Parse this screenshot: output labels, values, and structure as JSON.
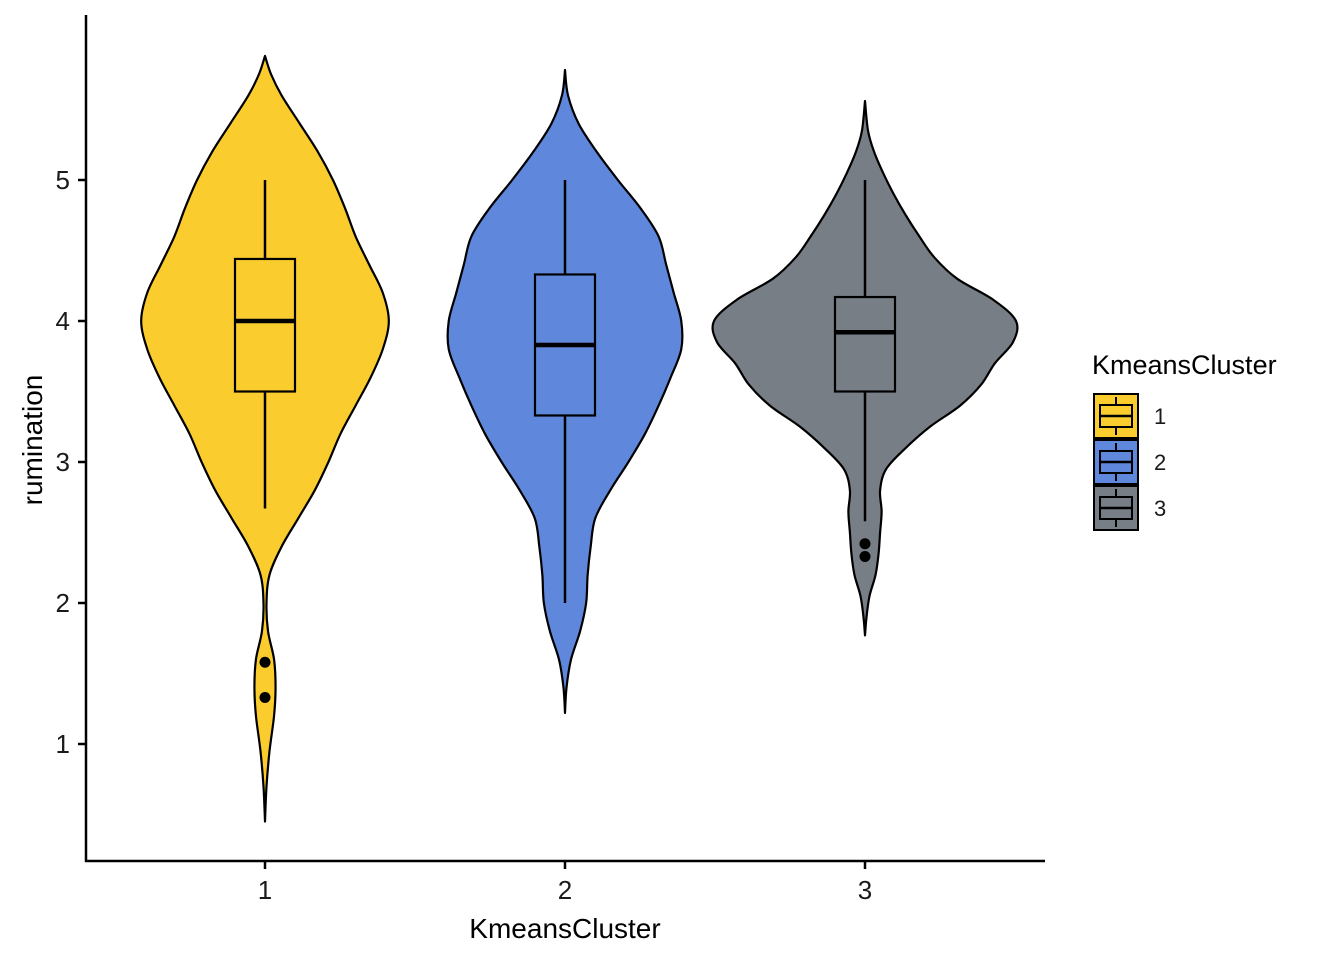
{
  "chart_data": {
    "type": "violin",
    "xlabel": "KmeansCluster",
    "ylabel": "rumination",
    "categories": [
      "1",
      "2",
      "3"
    ],
    "yticks": [
      1,
      2,
      3,
      4,
      5
    ],
    "ylim": [
      0.18,
      6.15
    ],
    "grid": false,
    "legend": {
      "title": "KmeansCluster",
      "placement": "right",
      "entries": [
        "1",
        "2",
        "3"
      ]
    },
    "colors": [
      "#FBCC2E",
      "#5F87DC",
      "#777E85"
    ],
    "groups": [
      {
        "name": "1",
        "violin": {
          "y": [
            0.45,
            0.7,
            0.95,
            1.2,
            1.4,
            1.6,
            1.8,
            2.0,
            2.2,
            2.4,
            2.6,
            2.8,
            3.0,
            3.2,
            3.4,
            3.6,
            3.8,
            4.0,
            4.2,
            4.4,
            4.6,
            4.8,
            5.0,
            5.2,
            5.4,
            5.6,
            5.75,
            5.88
          ],
          "half_width": [
            0.0,
            0.01,
            0.03,
            0.06,
            0.07,
            0.06,
            0.02,
            0.01,
            0.03,
            0.11,
            0.22,
            0.33,
            0.42,
            0.5,
            0.6,
            0.7,
            0.78,
            0.82,
            0.78,
            0.69,
            0.6,
            0.53,
            0.45,
            0.35,
            0.23,
            0.11,
            0.04,
            0.0
          ]
        },
        "box": {
          "whisker_low": 2.67,
          "q1": 3.5,
          "median": 4.0,
          "q3": 4.44,
          "whisker_high": 5.0
        },
        "outliers": [
          1.58,
          1.33
        ]
      },
      {
        "name": "2",
        "violin": {
          "y": [
            1.22,
            1.4,
            1.6,
            1.8,
            2.0,
            2.2,
            2.4,
            2.6,
            2.8,
            3.0,
            3.2,
            3.4,
            3.6,
            3.8,
            4.0,
            4.2,
            4.4,
            4.6,
            4.8,
            5.0,
            5.2,
            5.4,
            5.6,
            5.78
          ],
          "half_width": [
            0.0,
            0.01,
            0.04,
            0.1,
            0.14,
            0.15,
            0.17,
            0.2,
            0.3,
            0.42,
            0.53,
            0.62,
            0.7,
            0.77,
            0.77,
            0.72,
            0.67,
            0.62,
            0.5,
            0.35,
            0.21,
            0.09,
            0.02,
            0.0
          ]
        },
        "box": {
          "whisker_low": 2.0,
          "q1": 3.33,
          "median": 3.83,
          "q3": 4.33,
          "whisker_high": 5.0
        },
        "outliers": []
      },
      {
        "name": "3",
        "violin": {
          "y": [
            1.77,
            1.9,
            2.05,
            2.2,
            2.35,
            2.5,
            2.65,
            2.8,
            2.95,
            3.1,
            3.25,
            3.4,
            3.55,
            3.7,
            3.85,
            4.0,
            4.15,
            4.3,
            4.45,
            4.6,
            4.75,
            4.9,
            5.05,
            5.2,
            5.35,
            5.56
          ],
          "half_width": [
            0.0,
            0.01,
            0.03,
            0.07,
            0.09,
            0.1,
            0.11,
            0.1,
            0.14,
            0.27,
            0.43,
            0.63,
            0.77,
            0.86,
            0.98,
            1.0,
            0.85,
            0.61,
            0.46,
            0.36,
            0.27,
            0.19,
            0.12,
            0.06,
            0.02,
            0.0
          ]
        },
        "box": {
          "whisker_low": 2.58,
          "q1": 3.5,
          "median": 3.92,
          "q3": 4.17,
          "whisker_high": 5.0
        },
        "outliers": [
          2.42,
          2.33
        ]
      }
    ]
  }
}
